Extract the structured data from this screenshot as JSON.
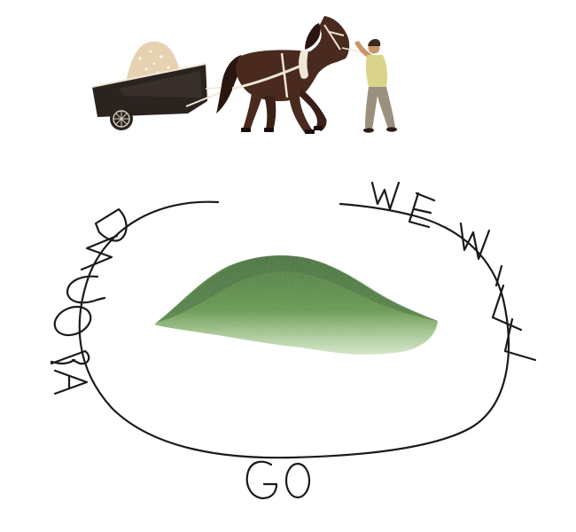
{
  "illustration": {
    "handwritten_text": {
      "word_1": "AROUND",
      "word_2": "WE",
      "word_3": "WILL",
      "word_4": "GO"
    },
    "colors": {
      "ink": "#1a1a1a",
      "hill_dark": "#3f7a2a",
      "hill_light": "#6fa64a",
      "horse_body": "#4a2a1e",
      "horse_dark": "#2a1610",
      "harness": "#efe6d6",
      "cart": "#2a2320",
      "sand": "#e6d2b0",
      "shirt": "#d9d48a",
      "trousers": "#9b8f7e",
      "skin": "#c8946a"
    }
  }
}
